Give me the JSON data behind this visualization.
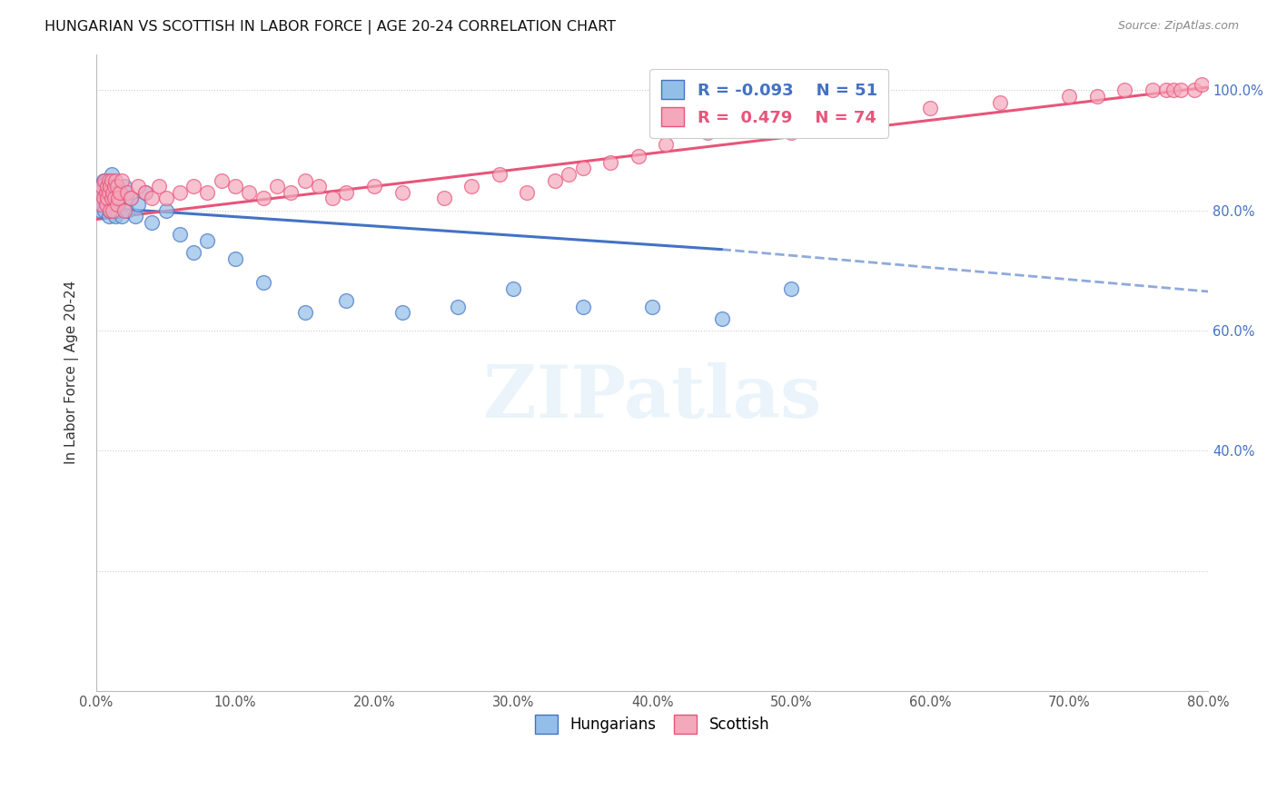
{
  "title": "HUNGARIAN VS SCOTTISH IN LABOR FORCE | AGE 20-24 CORRELATION CHART",
  "source": "Source: ZipAtlas.com",
  "ylabel": "In Labor Force | Age 20-24",
  "xlim": [
    0.0,
    0.8
  ],
  "ylim": [
    0.0,
    1.06
  ],
  "xticks": [
    0.0,
    0.1,
    0.2,
    0.3,
    0.4,
    0.5,
    0.6,
    0.7,
    0.8
  ],
  "xticklabels": [
    "0.0%",
    "10.0%",
    "20.0%",
    "30.0%",
    "40.0%",
    "50.0%",
    "60.0%",
    "70.0%",
    "80.0%"
  ],
  "yticks": [
    0.0,
    0.2,
    0.4,
    0.6,
    0.8,
    1.0
  ],
  "yticklabels_right": [
    "",
    "",
    "40.0%",
    "60.0%",
    "80.0%",
    "100.0%"
  ],
  "legend_r_hungarian": "-0.093",
  "legend_n_hungarian": "51",
  "legend_r_scottish": "0.479",
  "legend_n_scottish": "74",
  "color_hungarian": "#92BEE8",
  "color_scottish": "#F4A8BC",
  "color_trendline_hungarian": "#4472C4",
  "color_trendline_scottish": "#E8557A",
  "color_right_ytick": "#4472C4",
  "watermark": "ZIPatlas",
  "hung_trend_x0": 0.0,
  "hung_trend_y0": 0.805,
  "hung_trend_x1": 0.45,
  "hung_trend_y1": 0.735,
  "hung_trend_xdash": 0.8,
  "hung_trend_ydash": 0.665,
  "scot_trend_x0": 0.0,
  "scot_trend_y0": 0.785,
  "scot_trend_x1": 0.8,
  "scot_trend_y1": 1.005,
  "hungarian_x": [
    0.002,
    0.003,
    0.004,
    0.004,
    0.005,
    0.005,
    0.006,
    0.006,
    0.007,
    0.007,
    0.008,
    0.008,
    0.009,
    0.009,
    0.01,
    0.01,
    0.011,
    0.011,
    0.012,
    0.012,
    0.013,
    0.013,
    0.014,
    0.014,
    0.015,
    0.015,
    0.016,
    0.017,
    0.018,
    0.02,
    0.022,
    0.025,
    0.028,
    0.03,
    0.035,
    0.04,
    0.05,
    0.06,
    0.07,
    0.08,
    0.1,
    0.12,
    0.15,
    0.18,
    0.22,
    0.26,
    0.3,
    0.35,
    0.4,
    0.45,
    0.5
  ],
  "hungarian_y": [
    0.82,
    0.8,
    0.84,
    0.81,
    0.85,
    0.83,
    0.8,
    0.82,
    0.83,
    0.85,
    0.81,
    0.84,
    0.79,
    0.82,
    0.84,
    0.8,
    0.86,
    0.82,
    0.81,
    0.84,
    0.8,
    0.83,
    0.84,
    0.79,
    0.82,
    0.8,
    0.81,
    0.83,
    0.79,
    0.84,
    0.8,
    0.82,
    0.79,
    0.81,
    0.83,
    0.78,
    0.8,
    0.76,
    0.73,
    0.75,
    0.72,
    0.68,
    0.63,
    0.65,
    0.63,
    0.64,
    0.67,
    0.64,
    0.64,
    0.62,
    0.67
  ],
  "scottish_x": [
    0.002,
    0.003,
    0.004,
    0.005,
    0.006,
    0.007,
    0.007,
    0.008,
    0.008,
    0.009,
    0.009,
    0.01,
    0.01,
    0.011,
    0.011,
    0.012,
    0.012,
    0.013,
    0.013,
    0.014,
    0.015,
    0.015,
    0.016,
    0.017,
    0.018,
    0.02,
    0.022,
    0.025,
    0.03,
    0.035,
    0.04,
    0.045,
    0.05,
    0.06,
    0.07,
    0.08,
    0.09,
    0.1,
    0.11,
    0.12,
    0.13,
    0.14,
    0.15,
    0.16,
    0.17,
    0.18,
    0.2,
    0.22,
    0.25,
    0.27,
    0.29,
    0.31,
    0.33,
    0.34,
    0.35,
    0.37,
    0.39,
    0.41,
    0.44,
    0.46,
    0.5,
    0.53,
    0.56,
    0.6,
    0.65,
    0.7,
    0.72,
    0.74,
    0.76,
    0.77,
    0.775,
    0.78,
    0.79,
    0.795
  ],
  "scottish_y": [
    0.83,
    0.81,
    0.84,
    0.82,
    0.85,
    0.83,
    0.81,
    0.84,
    0.82,
    0.85,
    0.83,
    0.8,
    0.84,
    0.82,
    0.85,
    0.8,
    0.83,
    0.84,
    0.82,
    0.85,
    0.81,
    0.84,
    0.82,
    0.83,
    0.85,
    0.8,
    0.83,
    0.82,
    0.84,
    0.83,
    0.82,
    0.84,
    0.82,
    0.83,
    0.84,
    0.83,
    0.85,
    0.84,
    0.83,
    0.82,
    0.84,
    0.83,
    0.85,
    0.84,
    0.82,
    0.83,
    0.84,
    0.83,
    0.82,
    0.84,
    0.86,
    0.83,
    0.85,
    0.86,
    0.87,
    0.88,
    0.89,
    0.91,
    0.93,
    0.94,
    0.93,
    0.95,
    0.96,
    0.97,
    0.98,
    0.99,
    0.99,
    1.0,
    1.0,
    1.0,
    1.0,
    1.0,
    1.0,
    1.01
  ]
}
